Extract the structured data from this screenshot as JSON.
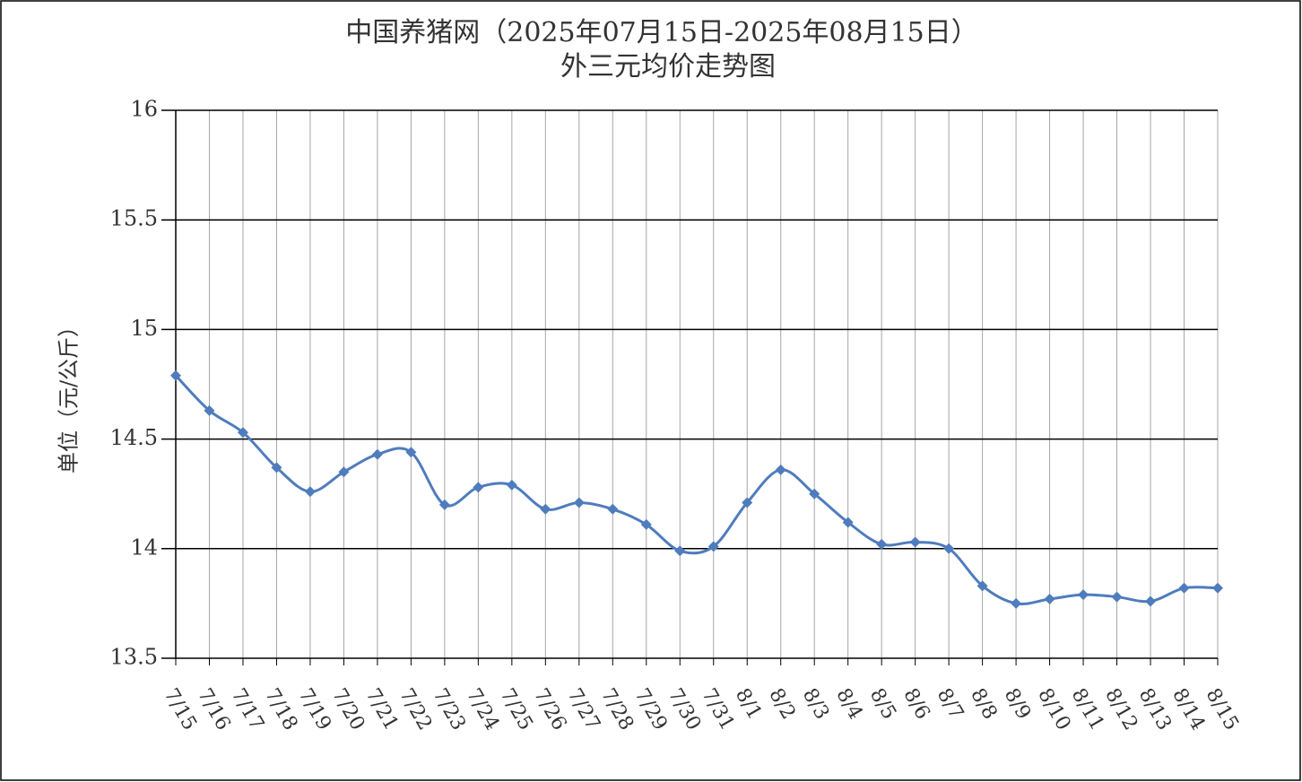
{
  "chart_data": {
    "type": "line",
    "title": "中国养猪网（2025年07月15日-2025年08月15日）",
    "subtitle": "外三元均价走势图",
    "y_label": "单位（元/公斤）",
    "categories": [
      "7/15",
      "7/16",
      "7/17",
      "7/18",
      "7/19",
      "7/20",
      "7/21",
      "7/22",
      "7/23",
      "7/24",
      "7/25",
      "7/26",
      "7/27",
      "7/28",
      "7/29",
      "7/30",
      "7/31",
      "8/1",
      "8/2",
      "8/3",
      "8/4",
      "8/5",
      "8/6",
      "8/7",
      "8/8",
      "8/9",
      "8/10",
      "8/11",
      "8/12",
      "8/13",
      "8/14",
      "8/15"
    ],
    "series": [
      {
        "name": "外三元",
        "color": "#4f7cbd",
        "values": [
          14.79,
          14.63,
          14.53,
          14.37,
          14.26,
          14.35,
          14.43,
          14.44,
          14.2,
          14.28,
          14.29,
          14.18,
          14.21,
          14.18,
          14.11,
          13.99,
          14.01,
          14.21,
          14.36,
          14.25,
          14.12,
          14.02,
          14.03,
          14.0,
          13.83,
          13.75,
          13.77,
          13.79,
          13.78,
          13.76,
          13.82,
          13.82
        ]
      }
    ],
    "ylim": [
      13.5,
      16
    ],
    "yticks": [
      13.5,
      14,
      14.5,
      15,
      15.5,
      16
    ],
    "grid": true
  }
}
